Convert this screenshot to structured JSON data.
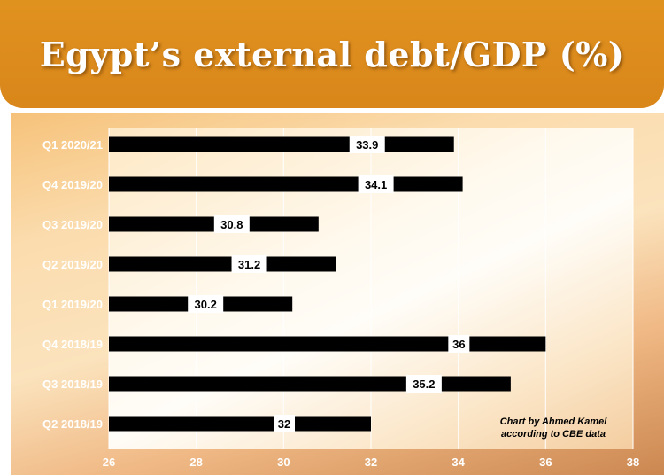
{
  "header": {
    "title": "Egypt’s external debt/GDP (%)"
  },
  "note": {
    "line1": "Chart by Ahmed Kamel",
    "line2": "according to CBE data"
  },
  "colors": {
    "header": "#dc8a1c",
    "bar": "#000000",
    "label_box": "#ffffff"
  },
  "chart_data": {
    "type": "bar",
    "orientation": "horizontal",
    "title": "Egypt’s external debt/GDP (%)",
    "categories": [
      "Q1 2020/21",
      "Q4 2019/20",
      "Q3 2019/20",
      "Q2 2019/20",
      "Q1 2019/20",
      "Q4 2018/19",
      "Q3 2018/19",
      "Q2 2018/19"
    ],
    "values": [
      33.9,
      34.1,
      30.8,
      31.2,
      30.2,
      36,
      35.2,
      32
    ],
    "value_labels": [
      "33.9",
      "34.1",
      "30.8",
      "31.2",
      "30.2",
      "36",
      "35.2",
      "32"
    ],
    "xlim": [
      26,
      38
    ],
    "xticks": [
      "26",
      "28",
      "30",
      "32",
      "34",
      "36",
      "38"
    ],
    "grid": true,
    "legend": "none"
  }
}
